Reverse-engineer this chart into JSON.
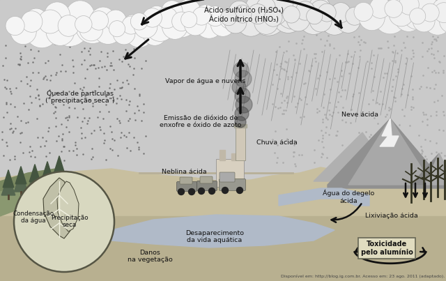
{
  "background_color": "#c8c8c8",
  "source_text": "Disponível em: http://blog.ig.com.br. Acesso em: 23 ago. 2011 (adaptado).",
  "labels": {
    "acid_title": "Ácido sulfúrico (H₂SO₄)\nÁcido nítrico (HNO₃)",
    "vapor": "Vapor de água e nuvens",
    "emissao": "Emissão de dióxido de\nenxofre e óxido de azoto",
    "queda": "Queda de partículas\n(\"precipitação seca\")",
    "chuva": "Chuva ácida",
    "neve": "Neve ácida",
    "neblina": "Neblina ácida",
    "condensacao": "Condensação\nda água",
    "precipitacao_seca": "Precipitação\nseca",
    "desaparecimento": "Desaparecimento\nda vida aquática",
    "danos": "Danos\nna vegetação",
    "agua_degelo": "Água do degelo\nácida",
    "lixiviacao": "Lixiviação ácida",
    "toxicidade": "Toxicidade\npelo alumínio"
  },
  "colors": {
    "background": "#c4c4c4",
    "sky": "#cccccc",
    "cloud_fill": "#f5f5f5",
    "cloud_edge": "#999999",
    "arrow_color": "#111111",
    "text_color": "#111111",
    "ground_light": "#d0c8b0",
    "ground_dark": "#b0a888",
    "water_color": "#b8c4cc",
    "mountain_dark": "#888888",
    "mountain_mid": "#aaaaaa",
    "mountain_light": "#cccccc",
    "snow_color": "#f0f0f0",
    "tree_dark": "#444433",
    "tree_green": "#556644"
  }
}
